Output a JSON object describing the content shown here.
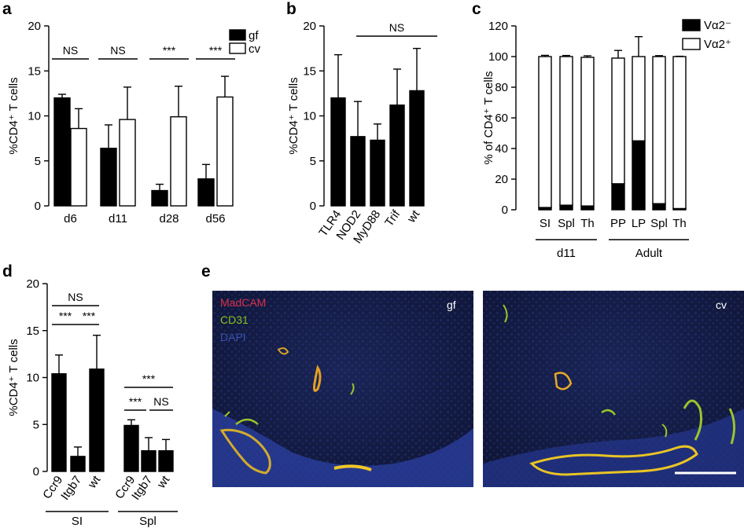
{
  "chart_data": [
    {
      "panel": "a",
      "type": "bar",
      "ylabel": "%CD4⁺ T cells",
      "ylim": [
        0,
        20
      ],
      "yticks": [
        0,
        5,
        10,
        15,
        20
      ],
      "categories": [
        "d6",
        "d11",
        "d28",
        "d56"
      ],
      "series": [
        {
          "name": "gf",
          "color": "#000000",
          "values": [
            12.0,
            6.4,
            1.7,
            3.0
          ],
          "errors": [
            0.4,
            2.6,
            0.7,
            1.6
          ]
        },
        {
          "name": "cv",
          "color": "#ffffff",
          "values": [
            8.6,
            9.6,
            9.9,
            12.1
          ],
          "errors": [
            2.2,
            3.6,
            3.4,
            2.3
          ]
        }
      ],
      "significance": [
        "NS",
        "NS",
        "***",
        "***"
      ],
      "legend_position": "top-right"
    },
    {
      "panel": "b",
      "type": "bar",
      "ylabel": "%CD4⁺ T cells",
      "ylim": [
        0,
        20
      ],
      "yticks": [
        0,
        5,
        10,
        15,
        20
      ],
      "categories": [
        "TLR4",
        "NOD2",
        "MyD88",
        "Trif",
        "wt"
      ],
      "values": [
        12.0,
        7.7,
        7.3,
        11.2,
        12.8
      ],
      "errors": [
        4.8,
        3.9,
        1.8,
        4.0,
        4.7
      ],
      "significance": [
        "NS"
      ]
    },
    {
      "panel": "c",
      "type": "bar",
      "stacked": true,
      "ylabel": "% of CD4⁺ T cells",
      "ylim": [
        0,
        120
      ],
      "yticks": [
        0,
        20,
        40,
        60,
        80,
        100,
        120
      ],
      "categories": [
        "SI",
        "Spl",
        "Th",
        "PP",
        "LP",
        "Spl",
        "Th"
      ],
      "groups": [
        {
          "label": "d11",
          "size": 3
        },
        {
          "label": "Adult",
          "size": 4
        }
      ],
      "series": [
        {
          "name": "Vα2⁻",
          "color": "#000000",
          "values": [
            1.5,
            3.0,
            2.5,
            17.0,
            45.0,
            4.0,
            0.8
          ],
          "errors": [
            0.8,
            0.8,
            1.2,
            5.0,
            13.0,
            1.0,
            0.3
          ]
        },
        {
          "name": "Vα2⁺",
          "color": "#ffffff",
          "values": [
            98.5,
            97.0,
            97.0,
            82.0,
            55.0,
            96.0,
            99.2
          ],
          "errors": [
            0.8,
            0.7,
            1.0,
            5.0,
            13.0,
            0.6,
            0.2
          ]
        }
      ],
      "legend_position": "top-right"
    },
    {
      "panel": "d",
      "type": "bar",
      "ylabel": "%CD4⁺ T cells",
      "ylim": [
        0,
        20
      ],
      "yticks": [
        0,
        5,
        10,
        15,
        20
      ],
      "categories": [
        "Ccr9",
        "Itgb7",
        "wt",
        "Ccr9",
        "Itgb7",
        "wt"
      ],
      "groups": [
        {
          "label": "SI",
          "size": 3
        },
        {
          "label": "Spl",
          "size": 3
        }
      ],
      "values": [
        10.4,
        1.6,
        10.9,
        4.9,
        2.2,
        2.2
      ],
      "errors": [
        2.0,
        1.0,
        3.6,
        0.6,
        1.4,
        1.2
      ],
      "significance": [
        "NS",
        "***",
        "***",
        "***",
        "***",
        "NS"
      ]
    }
  ],
  "panels": {
    "a": {
      "label": "a"
    },
    "b": {
      "label": "b"
    },
    "c": {
      "label": "c"
    },
    "d": {
      "label": "d"
    },
    "e": {
      "label": "e"
    }
  },
  "micrograph": {
    "stains": [
      {
        "name": "MadCAM",
        "color": "#d9304a"
      },
      {
        "name": "CD31",
        "color": "#86c21f"
      },
      {
        "name": "DAPI",
        "color": "#3b52b0"
      }
    ],
    "images": [
      {
        "label": "gf"
      },
      {
        "label": "cv"
      }
    ]
  }
}
